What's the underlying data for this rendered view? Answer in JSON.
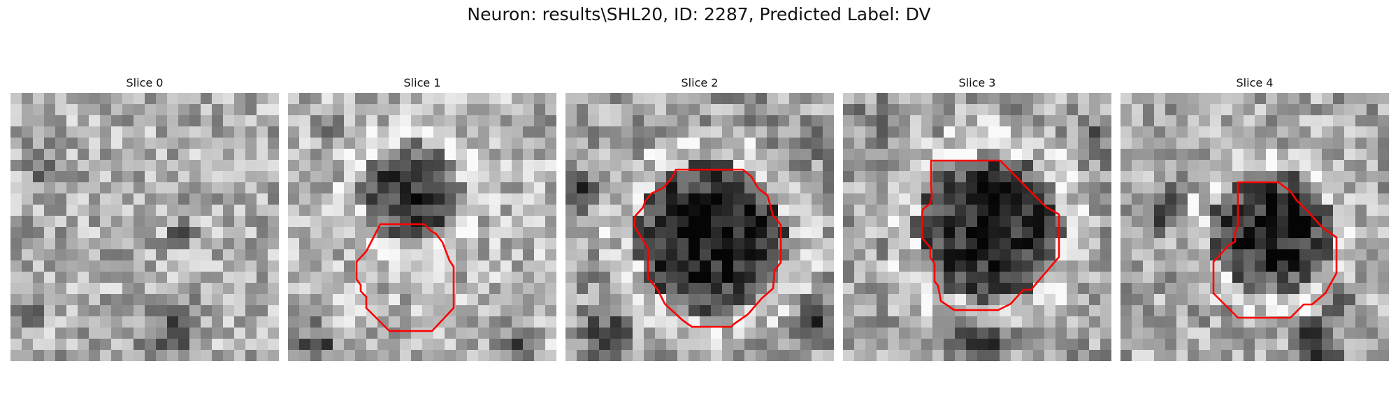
{
  "figure": {
    "title": "Neuron: results\\SHL20, ID: 2287, Predicted Label: DV"
  },
  "panels": [
    {
      "title": "Slice 0",
      "contour": false
    },
    {
      "title": "Slice 1",
      "contour": true
    },
    {
      "title": "Slice 2",
      "contour": true
    },
    {
      "title": "Slice 3",
      "contour": true
    },
    {
      "title": "Slice 4",
      "contour": true
    }
  ],
  "colors": {
    "contour": "#ff0000",
    "background": "#ffffff"
  }
}
